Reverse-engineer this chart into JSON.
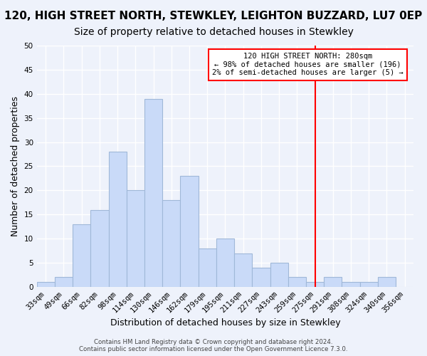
{
  "title": "120, HIGH STREET NORTH, STEWKLEY, LEIGHTON BUZZARD, LU7 0EP",
  "subtitle": "Size of property relative to detached houses in Stewkley",
  "xlabel": "Distribution of detached houses by size in Stewkley",
  "ylabel": "Number of detached properties",
  "bins": [
    "33sqm",
    "49sqm",
    "66sqm",
    "82sqm",
    "98sqm",
    "114sqm",
    "130sqm",
    "146sqm",
    "162sqm",
    "179sqm",
    "195sqm",
    "211sqm",
    "227sqm",
    "243sqm",
    "259sqm",
    "275sqm",
    "291sqm",
    "308sqm",
    "324sqm",
    "340sqm",
    "356sqm"
  ],
  "counts": [
    1,
    2,
    13,
    16,
    28,
    20,
    39,
    18,
    23,
    8,
    10,
    7,
    4,
    5,
    2,
    1,
    2,
    1,
    1,
    2,
    0
  ],
  "bar_color": "#c9daf8",
  "bar_edge_color": "#a0b8d8",
  "vline_x_index": 15,
  "vline_color": "red",
  "annotation_text": "120 HIGH STREET NORTH: 280sqm\n← 98% of detached houses are smaller (196)\n2% of semi-detached houses are larger (5) →",
  "annotation_box_color": "white",
  "annotation_box_edge_color": "red",
  "ylim": [
    0,
    50
  ],
  "yticks": [
    0,
    5,
    10,
    15,
    20,
    25,
    30,
    35,
    40,
    45,
    50
  ],
  "footer": "Contains HM Land Registry data © Crown copyright and database right 2024.\nContains public sector information licensed under the Open Government Licence 7.3.0.",
  "bg_color": "#eef2fb",
  "grid_color": "#ffffff",
  "title_fontsize": 11,
  "subtitle_fontsize": 10,
  "tick_fontsize": 7.5,
  "ylabel_fontsize": 9,
  "xlabel_fontsize": 9
}
